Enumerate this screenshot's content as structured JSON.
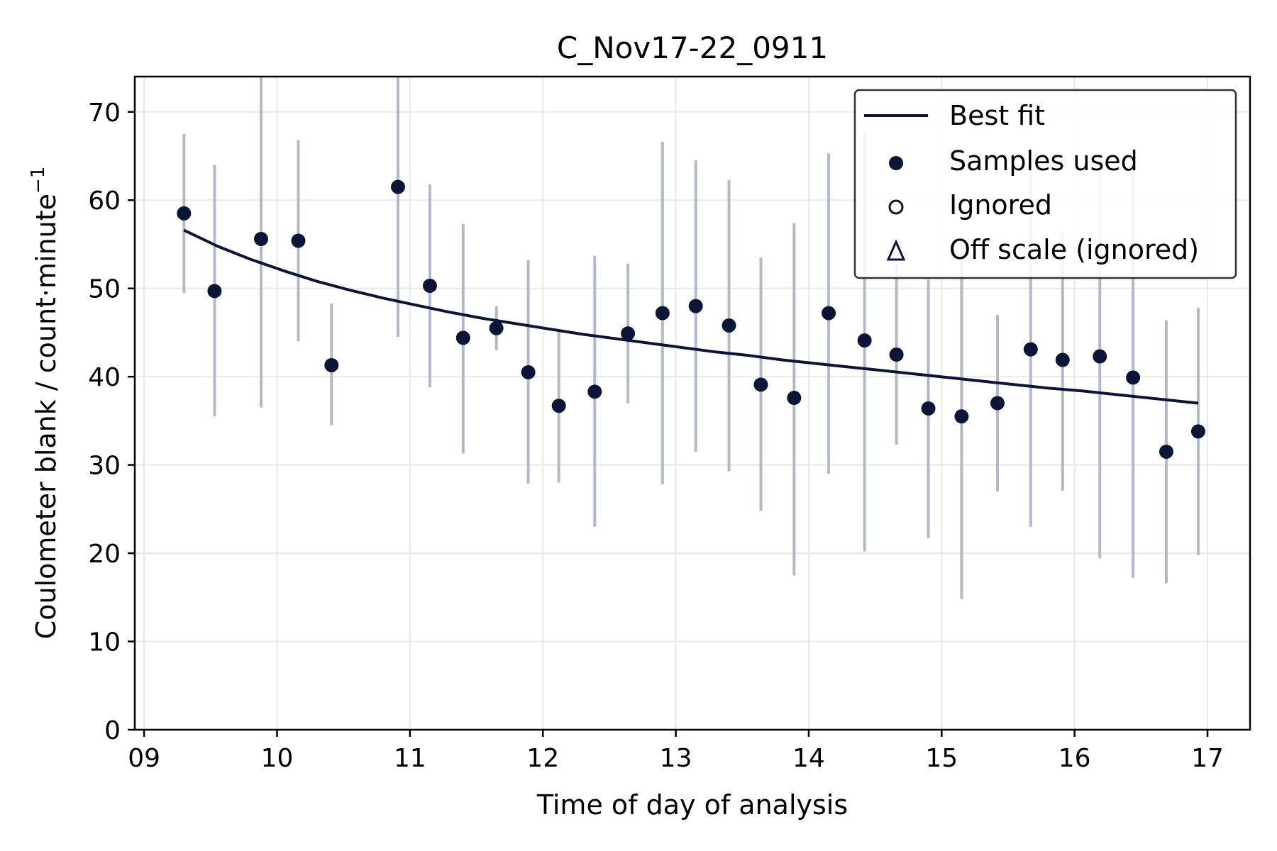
{
  "chart_data": {
    "type": "scatter",
    "title": "C_Nov17-22_0911",
    "xlabel": "Time of day of analysis",
    "ylabel": "Coulometer blank / count·minute",
    "ylabel_sup": "−1",
    "xlim": [
      8.93,
      17.32
    ],
    "ylim": [
      0,
      74
    ],
    "x_ticks": [
      9,
      10,
      11,
      12,
      13,
      14,
      15,
      16,
      17
    ],
    "x_tick_labels": [
      "09",
      "10",
      "11",
      "12",
      "13",
      "14",
      "15",
      "16",
      "17"
    ],
    "y_ticks": [
      0,
      10,
      20,
      30,
      40,
      50,
      60,
      70
    ],
    "y_tick_labels": [
      "0",
      "10",
      "20",
      "30",
      "40",
      "50",
      "60",
      "70"
    ],
    "grid": true,
    "legend_position": "top-right",
    "legend": [
      "Best fit",
      "Samples used",
      "Ignored",
      "Off scale (ignored)"
    ],
    "colors": {
      "marker": "#0b1537",
      "errorbar": "#b3b9c8",
      "fit": "#0b1537",
      "grid": "#e8e8e8"
    },
    "series": [
      {
        "name": "Samples used",
        "points": [
          {
            "x": 9.3,
            "y": 58.5,
            "lo": 49.5,
            "hi": 67.5
          },
          {
            "x": 9.53,
            "y": 49.7,
            "lo": 35.5,
            "hi": 64.0
          },
          {
            "x": 9.88,
            "y": 55.6,
            "lo": 36.5,
            "hi": 74.0
          },
          {
            "x": 10.16,
            "y": 55.4,
            "lo": 44.0,
            "hi": 66.8
          },
          {
            "x": 10.41,
            "y": 41.3,
            "lo": 34.5,
            "hi": 48.3
          },
          {
            "x": 10.91,
            "y": 61.5,
            "lo": 44.5,
            "hi": 74.0
          },
          {
            "x": 11.15,
            "y": 50.3,
            "lo": 38.8,
            "hi": 61.8
          },
          {
            "x": 11.4,
            "y": 44.4,
            "lo": 31.3,
            "hi": 57.3
          },
          {
            "x": 11.65,
            "y": 45.5,
            "lo": 43.0,
            "hi": 48.0
          },
          {
            "x": 11.89,
            "y": 40.5,
            "lo": 27.9,
            "hi": 53.2
          },
          {
            "x": 12.12,
            "y": 36.7,
            "lo": 28.0,
            "hi": 45.3
          },
          {
            "x": 12.39,
            "y": 38.3,
            "lo": 23.0,
            "hi": 53.7
          },
          {
            "x": 12.64,
            "y": 44.9,
            "lo": 37.0,
            "hi": 52.8
          },
          {
            "x": 12.9,
            "y": 47.2,
            "lo": 27.8,
            "hi": 66.6
          },
          {
            "x": 13.15,
            "y": 48.0,
            "lo": 31.5,
            "hi": 64.5
          },
          {
            "x": 13.4,
            "y": 45.8,
            "lo": 29.3,
            "hi": 62.3
          },
          {
            "x": 13.64,
            "y": 39.1,
            "lo": 24.8,
            "hi": 53.5
          },
          {
            "x": 13.89,
            "y": 37.6,
            "lo": 17.5,
            "hi": 57.4
          },
          {
            "x": 14.15,
            "y": 47.2,
            "lo": 29.0,
            "hi": 65.3
          },
          {
            "x": 14.42,
            "y": 44.1,
            "lo": 20.2,
            "hi": 67.8
          },
          {
            "x": 14.66,
            "y": 42.5,
            "lo": 32.3,
            "hi": 52.8
          },
          {
            "x": 14.9,
            "y": 36.4,
            "lo": 21.7,
            "hi": 51.0
          },
          {
            "x": 15.15,
            "y": 35.5,
            "lo": 14.8,
            "hi": 56.3
          },
          {
            "x": 15.42,
            "y": 37.0,
            "lo": 27.0,
            "hi": 47.0
          },
          {
            "x": 15.67,
            "y": 43.1,
            "lo": 23.0,
            "hi": 63.3
          },
          {
            "x": 15.91,
            "y": 41.9,
            "lo": 27.1,
            "hi": 56.5
          },
          {
            "x": 16.19,
            "y": 42.3,
            "lo": 19.4,
            "hi": 65.3
          },
          {
            "x": 16.44,
            "y": 39.9,
            "lo": 17.2,
            "hi": 62.6
          },
          {
            "x": 16.69,
            "y": 31.5,
            "lo": 16.6,
            "hi": 46.4
          },
          {
            "x": 16.93,
            "y": 33.8,
            "lo": 19.8,
            "hi": 47.8
          }
        ]
      },
      {
        "name": "Best fit",
        "x": [
          9.3,
          9.55,
          9.8,
          10.05,
          10.3,
          10.55,
          10.8,
          11.05,
          11.3,
          11.55,
          11.8,
          12.05,
          12.3,
          12.55,
          12.8,
          13.05,
          13.3,
          13.55,
          13.8,
          14.05,
          14.3,
          14.55,
          14.8,
          15.05,
          15.3,
          15.55,
          15.8,
          16.05,
          16.3,
          16.55,
          16.8,
          16.93
        ],
        "y": [
          56.6,
          54.8,
          53.3,
          52.0,
          50.8,
          49.8,
          48.9,
          48.1,
          47.3,
          46.6,
          46.0,
          45.4,
          44.8,
          44.3,
          43.8,
          43.3,
          42.8,
          42.4,
          41.9,
          41.5,
          41.1,
          40.7,
          40.3,
          39.9,
          39.5,
          39.1,
          38.7,
          38.4,
          38.0,
          37.6,
          37.2,
          37.0
        ]
      }
    ]
  }
}
